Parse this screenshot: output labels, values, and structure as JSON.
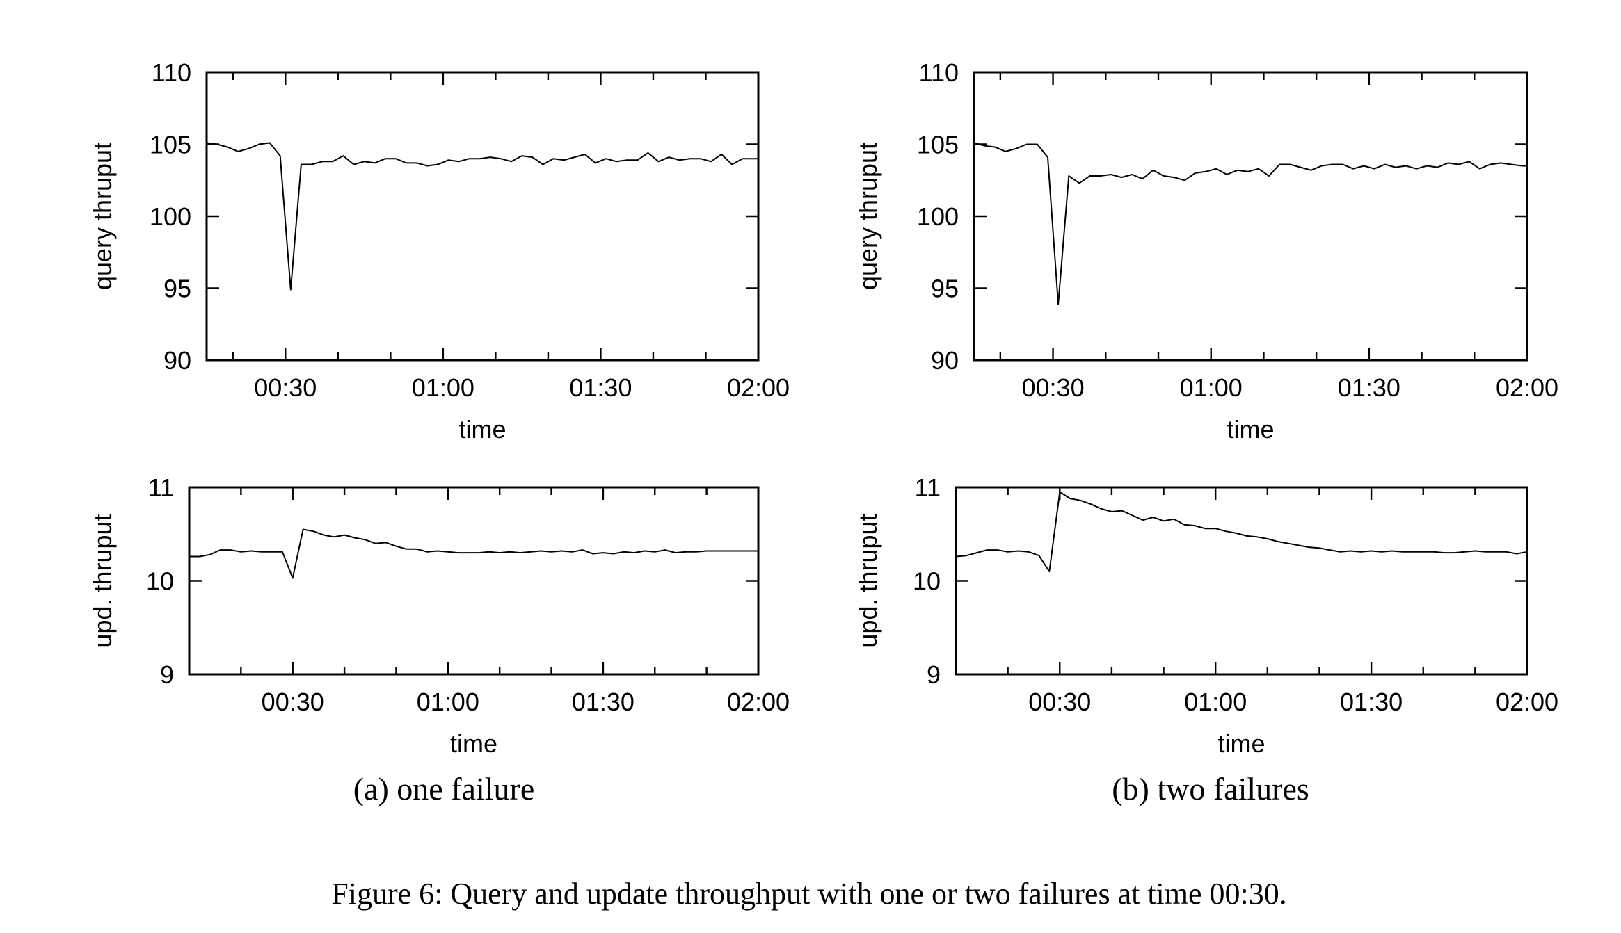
{
  "figure": {
    "caption": "Figure 6: Query and update throughput with one or two failures at time 00:30.",
    "subcaptions": [
      "(a) one failure",
      "(b) two failures"
    ]
  },
  "chart_data": [
    {
      "id": "a-query",
      "type": "line",
      "panel": "(a) one failure",
      "xlabel": "time",
      "ylabel": "query thruput",
      "xlim": [
        "00:15",
        "02:00"
      ],
      "ylim": [
        90,
        110
      ],
      "xticks": [
        "00:30",
        "01:00",
        "01:30",
        "02:00"
      ],
      "yticks": [
        90,
        95,
        100,
        105,
        110
      ],
      "series": [
        {
          "x": [
            "00:15",
            "00:17",
            "00:19",
            "00:21",
            "00:23",
            "00:25",
            "00:27",
            "00:29",
            "00:31",
            "00:33",
            "00:35",
            "00:37",
            "00:39",
            "00:41",
            "00:43",
            "00:45",
            "00:47",
            "00:49",
            "00:51",
            "00:53",
            "00:55",
            "00:57",
            "00:59",
            "01:01",
            "01:03",
            "01:05",
            "01:07",
            "01:09",
            "01:11",
            "01:13",
            "01:15",
            "01:17",
            "01:19",
            "01:21",
            "01:23",
            "01:25",
            "01:27",
            "01:29",
            "01:31",
            "01:33",
            "01:35",
            "01:37",
            "01:39",
            "01:41",
            "01:43",
            "01:45",
            "01:47",
            "01:49",
            "01:51",
            "01:53",
            "01:55",
            "01:57",
            "01:59",
            "02:00"
          ],
          "y": [
            105.1,
            105.0,
            104.8,
            104.5,
            104.7,
            105.0,
            105.1,
            104.2,
            94.9,
            103.6,
            103.6,
            103.8,
            103.8,
            104.2,
            103.6,
            103.8,
            103.7,
            104.0,
            104.0,
            103.7,
            103.7,
            103.5,
            103.6,
            103.9,
            103.8,
            104.0,
            104.0,
            104.1,
            104.0,
            103.8,
            104.2,
            104.1,
            103.6,
            104.0,
            103.9,
            104.1,
            104.3,
            103.7,
            104.0,
            103.8,
            103.9,
            103.9,
            104.4,
            103.8,
            104.1,
            103.9,
            104.0,
            104.0,
            103.8,
            104.3,
            103.6,
            104.0,
            104.0,
            104.0
          ]
        }
      ]
    },
    {
      "id": "a-update",
      "type": "line",
      "panel": "(a) one failure",
      "xlabel": "time",
      "ylabel": "upd. thruput",
      "xlim": [
        "00:10",
        "02:00"
      ],
      "ylim": [
        9,
        11
      ],
      "xticks": [
        "00:30",
        "01:00",
        "01:30",
        "02:00"
      ],
      "yticks": [
        9,
        10,
        11
      ],
      "series": [
        {
          "x": [
            "00:10",
            "00:12",
            "00:14",
            "00:16",
            "00:18",
            "00:20",
            "00:22",
            "00:24",
            "00:26",
            "00:28",
            "00:30",
            "00:32",
            "00:34",
            "00:36",
            "00:38",
            "00:40",
            "00:42",
            "00:44",
            "00:46",
            "00:48",
            "00:50",
            "00:52",
            "00:54",
            "00:56",
            "00:58",
            "01:00",
            "01:02",
            "01:04",
            "01:06",
            "01:08",
            "01:10",
            "01:12",
            "01:14",
            "01:16",
            "01:18",
            "01:20",
            "01:22",
            "01:24",
            "01:26",
            "01:28",
            "01:30",
            "01:32",
            "01:34",
            "01:36",
            "01:38",
            "01:40",
            "01:42",
            "01:44",
            "01:46",
            "01:48",
            "01:50",
            "01:52",
            "01:54",
            "01:56",
            "01:58",
            "02:00"
          ],
          "y": [
            10.26,
            10.26,
            10.28,
            10.33,
            10.33,
            10.31,
            10.32,
            10.31,
            10.31,
            10.31,
            10.03,
            10.55,
            10.53,
            10.49,
            10.47,
            10.49,
            10.46,
            10.44,
            10.4,
            10.41,
            10.37,
            10.34,
            10.34,
            10.31,
            10.32,
            10.31,
            10.3,
            10.3,
            10.3,
            10.31,
            10.3,
            10.31,
            10.3,
            10.31,
            10.32,
            10.31,
            10.32,
            10.31,
            10.33,
            10.29,
            10.3,
            10.29,
            10.31,
            10.3,
            10.32,
            10.31,
            10.33,
            10.3,
            10.31,
            10.31,
            10.32,
            10.32,
            10.32,
            10.32,
            10.32,
            10.32
          ]
        }
      ]
    },
    {
      "id": "b-query",
      "type": "line",
      "panel": "(b) two failures",
      "xlabel": "time",
      "ylabel": "query thruput",
      "xlim": [
        "00:15",
        "02:00"
      ],
      "ylim": [
        90,
        110
      ],
      "xticks": [
        "00:30",
        "01:00",
        "01:30",
        "02:00"
      ],
      "yticks": [
        90,
        95,
        100,
        105,
        110
      ],
      "series": [
        {
          "x": [
            "00:15",
            "00:17",
            "00:19",
            "00:21",
            "00:23",
            "00:25",
            "00:27",
            "00:29",
            "00:31",
            "00:33",
            "00:35",
            "00:37",
            "00:39",
            "00:41",
            "00:43",
            "00:45",
            "00:47",
            "00:49",
            "00:51",
            "00:53",
            "00:55",
            "00:57",
            "00:59",
            "01:01",
            "01:03",
            "01:05",
            "01:07",
            "01:09",
            "01:11",
            "01:13",
            "01:15",
            "01:17",
            "01:19",
            "01:21",
            "01:23",
            "01:25",
            "01:27",
            "01:29",
            "01:31",
            "01:33",
            "01:35",
            "01:37",
            "01:39",
            "01:41",
            "01:43",
            "01:45",
            "01:47",
            "01:49",
            "01:51",
            "01:53",
            "01:55",
            "01:57",
            "01:59",
            "02:00"
          ],
          "y": [
            105.1,
            104.9,
            104.8,
            104.5,
            104.7,
            105.0,
            105.0,
            104.1,
            93.9,
            102.8,
            102.3,
            102.8,
            102.8,
            102.9,
            102.7,
            102.9,
            102.6,
            103.2,
            102.8,
            102.7,
            102.5,
            103.0,
            103.1,
            103.3,
            102.9,
            103.2,
            103.1,
            103.3,
            102.8,
            103.6,
            103.6,
            103.4,
            103.2,
            103.5,
            103.6,
            103.6,
            103.3,
            103.5,
            103.3,
            103.6,
            103.4,
            103.5,
            103.3,
            103.5,
            103.4,
            103.7,
            103.6,
            103.8,
            103.3,
            103.6,
            103.7,
            103.6,
            103.5,
            103.5
          ]
        }
      ]
    },
    {
      "id": "b-update",
      "type": "line",
      "panel": "(b) two failures",
      "xlabel": "time",
      "ylabel": "upd. thruput",
      "xlim": [
        "00:10",
        "02:00"
      ],
      "ylim": [
        9,
        11
      ],
      "xticks": [
        "00:30",
        "01:00",
        "01:30",
        "02:00"
      ],
      "yticks": [
        9,
        10,
        11
      ],
      "series": [
        {
          "x": [
            "00:10",
            "00:12",
            "00:14",
            "00:16",
            "00:18",
            "00:20",
            "00:22",
            "00:24",
            "00:26",
            "00:28",
            "00:30",
            "00:32",
            "00:34",
            "00:36",
            "00:38",
            "00:40",
            "00:42",
            "00:44",
            "00:46",
            "00:48",
            "00:50",
            "00:52",
            "00:54",
            "00:56",
            "00:58",
            "01:00",
            "01:02",
            "01:04",
            "01:06",
            "01:08",
            "01:10",
            "01:12",
            "01:14",
            "01:16",
            "01:18",
            "01:20",
            "01:22",
            "01:24",
            "01:26",
            "01:28",
            "01:30",
            "01:32",
            "01:34",
            "01:36",
            "01:38",
            "01:40",
            "01:42",
            "01:44",
            "01:46",
            "01:48",
            "01:50",
            "01:52",
            "01:54",
            "01:56",
            "01:58",
            "02:00"
          ],
          "y": [
            10.26,
            10.27,
            10.3,
            10.33,
            10.33,
            10.31,
            10.32,
            10.31,
            10.27,
            10.1,
            10.95,
            10.88,
            10.86,
            10.82,
            10.77,
            10.74,
            10.75,
            10.7,
            10.65,
            10.68,
            10.64,
            10.66,
            10.6,
            10.59,
            10.56,
            10.56,
            10.53,
            10.51,
            10.48,
            10.47,
            10.45,
            10.42,
            10.4,
            10.38,
            10.36,
            10.35,
            10.33,
            10.31,
            10.32,
            10.31,
            10.32,
            10.31,
            10.32,
            10.31,
            10.31,
            10.31,
            10.31,
            10.3,
            10.3,
            10.31,
            10.32,
            10.31,
            10.31,
            10.31,
            10.29,
            10.31
          ]
        }
      ]
    }
  ]
}
